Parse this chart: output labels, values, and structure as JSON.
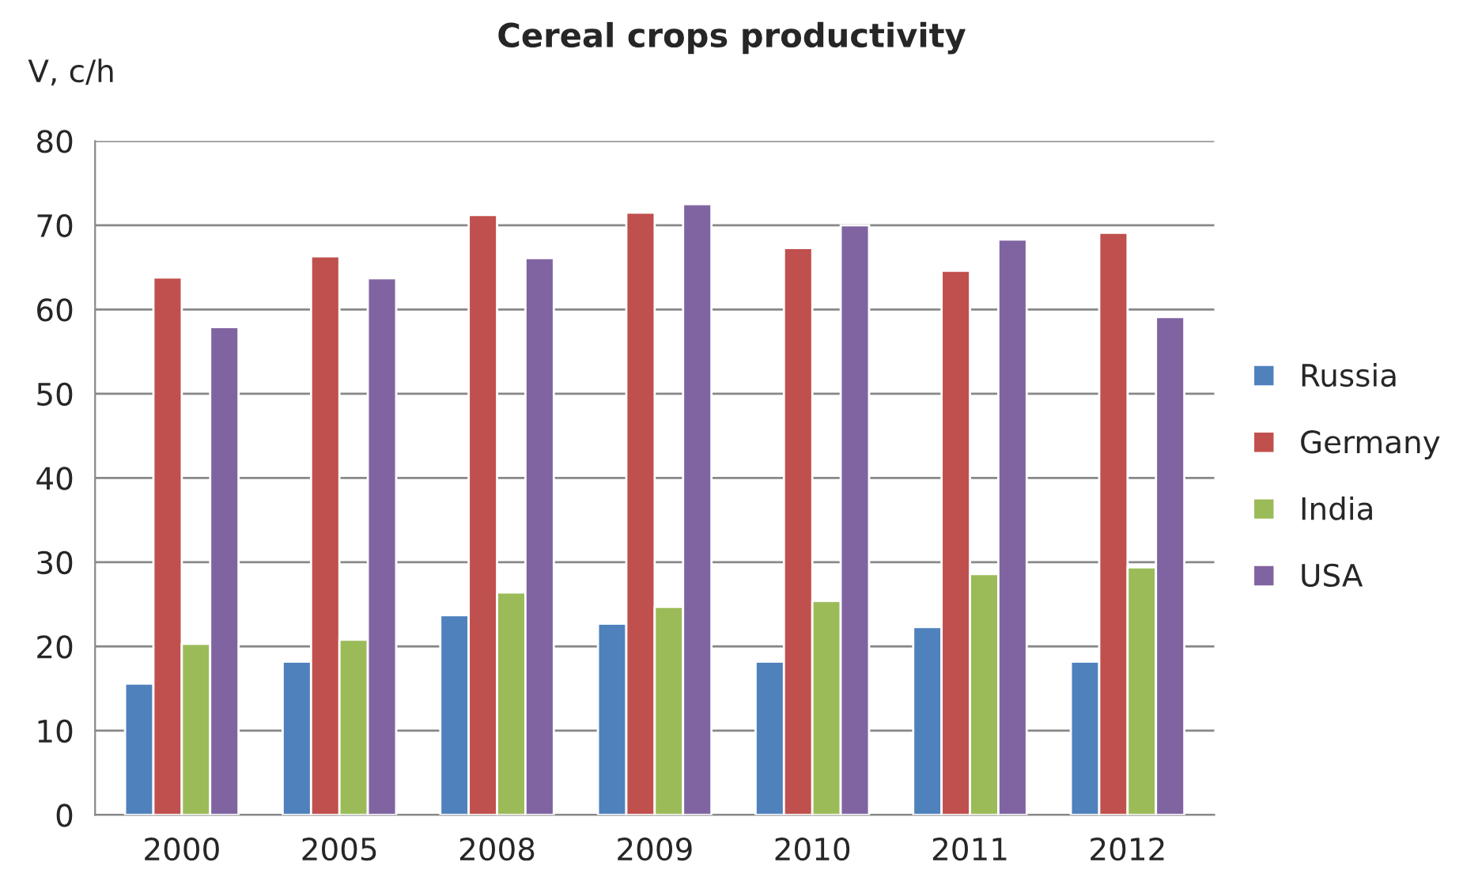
{
  "chart_data": {
    "type": "bar",
    "title": "Cereal crops productivity",
    "ylabel": "V, c/h",
    "categories": [
      "2000",
      "2005",
      "2008",
      "2009",
      "2010",
      "2011",
      "2012"
    ],
    "series": [
      {
        "name": "Russia",
        "color": "#4f81bd",
        "values": [
          15.6,
          18.2,
          23.7,
          22.7,
          18.2,
          22.3,
          18.2
        ]
      },
      {
        "name": "Germany",
        "color": "#c0504d",
        "values": [
          63.8,
          66.3,
          71.2,
          71.5,
          67.3,
          64.6,
          69.1
        ]
      },
      {
        "name": "India",
        "color": "#9bbb59",
        "values": [
          20.3,
          20.8,
          26.4,
          24.7,
          25.4,
          28.6,
          29.4
        ]
      },
      {
        "name": "USA",
        "color": "#8064a2",
        "values": [
          57.9,
          63.7,
          66.1,
          72.5,
          70.0,
          68.3,
          59.1
        ]
      }
    ],
    "ylim": [
      0,
      80
    ],
    "yticks": [
      0,
      10,
      20,
      30,
      40,
      50,
      60,
      70,
      80
    ],
    "grid": "y",
    "legend": "right"
  }
}
